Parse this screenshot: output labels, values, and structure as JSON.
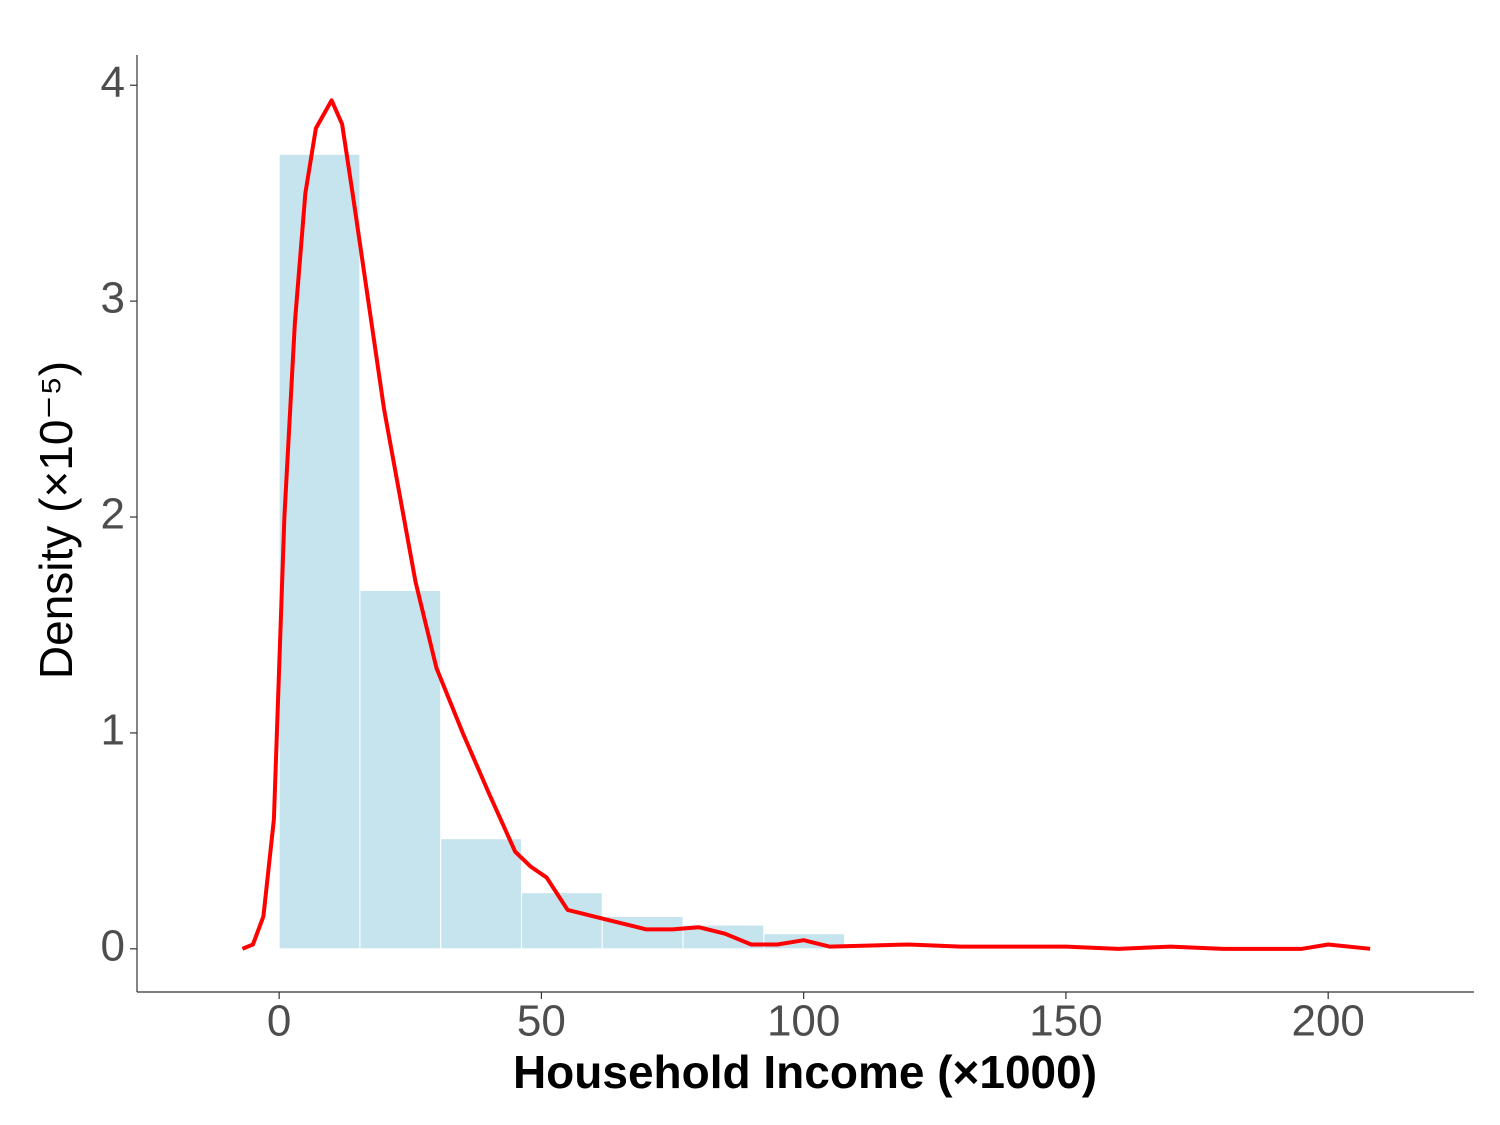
{
  "chart_data": {
    "type": "histogram",
    "x_label": "Household Income (×1000)",
    "y_label": "Density (×10⁻⁵)",
    "bins": [
      0,
      15.4,
      30.8,
      46.2,
      61.6,
      77,
      92.4,
      107.8
    ],
    "values": [
      3.68,
      1.66,
      0.51,
      0.26,
      0.15,
      0.11,
      0.07
    ],
    "color": "#c6e4ee",
    "curve": {
      "color": "#ff0000",
      "x": [
        -7,
        -5,
        -3,
        -1,
        1,
        3,
        5,
        7,
        10,
        12,
        14,
        17,
        20,
        23,
        26,
        30,
        35,
        40,
        45,
        48,
        51,
        55,
        60,
        65,
        70,
        75,
        80,
        85,
        90,
        95,
        100,
        105,
        120,
        130,
        140,
        150,
        160,
        170,
        180,
        195,
        200,
        208
      ],
      "y": [
        0,
        0.02,
        0.15,
        0.6,
        2.0,
        2.9,
        3.5,
        3.8,
        3.93,
        3.82,
        3.5,
        3.0,
        2.5,
        2.1,
        1.7,
        1.3,
        1.0,
        0.72,
        0.45,
        0.38,
        0.33,
        0.18,
        0.15,
        0.12,
        0.09,
        0.09,
        0.1,
        0.07,
        0.02,
        0.02,
        0.04,
        0.01,
        0.02,
        0.01,
        0.01,
        0.01,
        0,
        0.01,
        0,
        0,
        0.02,
        0
      ]
    },
    "xlim": [
      -27.1,
      227.8
    ],
    "ylim": [
      -0.2,
      4.14
    ],
    "xticks": [
      0,
      50,
      100,
      150,
      200
    ],
    "yticks": [
      0,
      1,
      2,
      3,
      4
    ],
    "grid": false
  }
}
